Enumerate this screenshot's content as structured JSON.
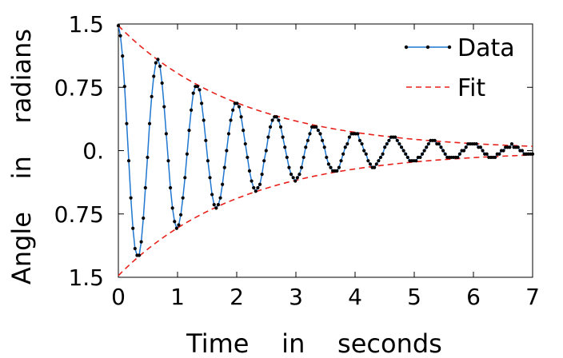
{
  "chart_data": {
    "type": "line",
    "title": "",
    "xlabel": "Time    in    seconds",
    "ylabel": "Angle    in    radians",
    "xlim": [
      0,
      7
    ],
    "ylim": [
      -1.5,
      1.5
    ],
    "xticks": [
      "0",
      "1",
      "2",
      "3",
      "4",
      "5",
      "6",
      "7"
    ],
    "yticks": [
      "1.5",
      "0.75",
      "0.",
      "0.75",
      "1.5"
    ],
    "ytick_values": [
      1.5,
      0.75,
      0,
      -0.75,
      -1.5
    ],
    "grid": false,
    "legend_position": "top-right",
    "series": [
      {
        "name": "Data",
        "style": "line-with-markers",
        "color": "#1f77d0",
        "marker_color": "#000000",
        "model": {
          "amplitude": 1.48,
          "decay": 0.48,
          "period": 0.665,
          "quantize": 0.04
        },
        "x_start": 0,
        "x_end": 7,
        "n_points": 200
      },
      {
        "name": "Fit",
        "style": "dashed",
        "color": "#e8201a",
        "envelope": {
          "amplitude": 1.48,
          "decay": 0.48
        },
        "x_start": 0,
        "x_end": 7
      }
    ]
  }
}
